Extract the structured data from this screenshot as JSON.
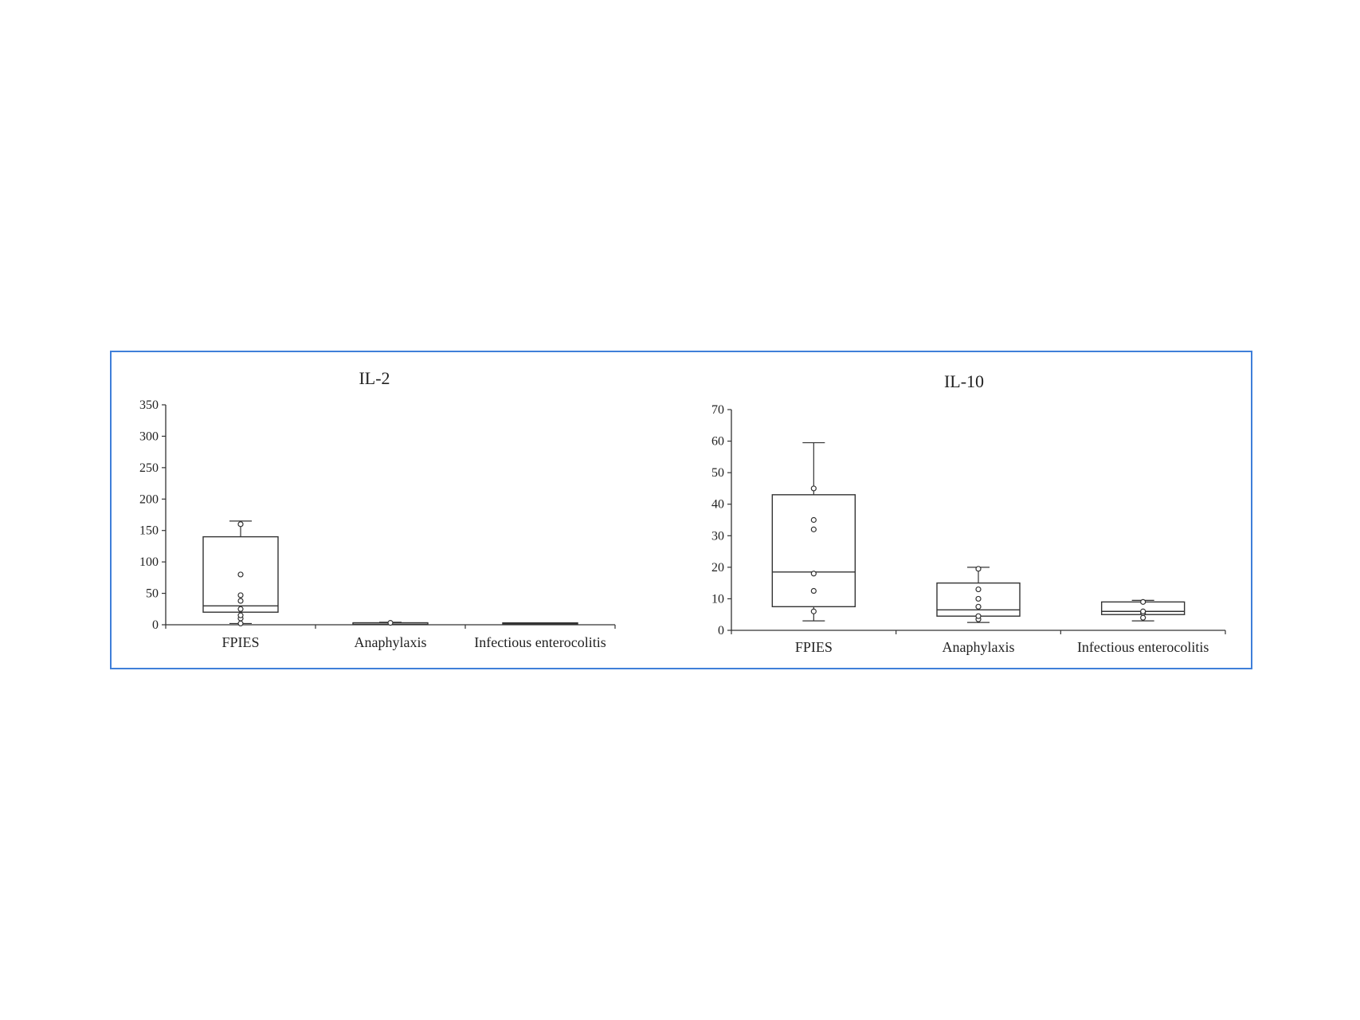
{
  "figure": {
    "border_color": "#3f7fd9"
  },
  "chart_data": [
    {
      "type": "box",
      "title": "IL-2",
      "xlabel": "",
      "ylabel": "",
      "ylim": [
        0,
        350
      ],
      "yticks": [
        "0",
        "50",
        "100",
        "150",
        "200",
        "250",
        "300",
        "350"
      ],
      "categories": [
        "FPIES",
        "Anaphylaxis",
        "Infectious enterocolitis"
      ],
      "boxes": [
        {
          "min": 2,
          "q1": 20,
          "median": 30,
          "q3": 140,
          "max": 165,
          "points": [
            2,
            10,
            15,
            25,
            38,
            47,
            80,
            160
          ]
        },
        {
          "min": 2,
          "q1": 2,
          "median": 3,
          "q3": 3,
          "max": 4,
          "points": [
            3
          ]
        },
        {
          "min": 2,
          "q1": 2,
          "median": 2,
          "q3": 3,
          "max": 3,
          "points": []
        }
      ]
    },
    {
      "type": "box",
      "title": "IL-10",
      "xlabel": "",
      "ylabel": "",
      "ylim": [
        0,
        70
      ],
      "yticks": [
        "0",
        "10",
        "20",
        "30",
        "40",
        "50",
        "60",
        "70"
      ],
      "categories": [
        "FPIES",
        "Anaphylaxis",
        "Infectious enterocolitis"
      ],
      "boxes": [
        {
          "min": 3,
          "q1": 7.5,
          "median": 18.5,
          "q3": 43,
          "max": 59.5,
          "points": [
            6,
            12.5,
            18,
            32,
            35,
            45
          ]
        },
        {
          "min": 2.5,
          "q1": 4.5,
          "median": 6.5,
          "q3": 15,
          "max": 20,
          "points": [
            3.5,
            4.5,
            7.5,
            10,
            13,
            19.5
          ]
        },
        {
          "min": 3,
          "q1": 5,
          "median": 6,
          "q3": 9,
          "max": 9.5,
          "points": [
            4,
            5.5,
            6,
            9
          ]
        }
      ]
    }
  ]
}
